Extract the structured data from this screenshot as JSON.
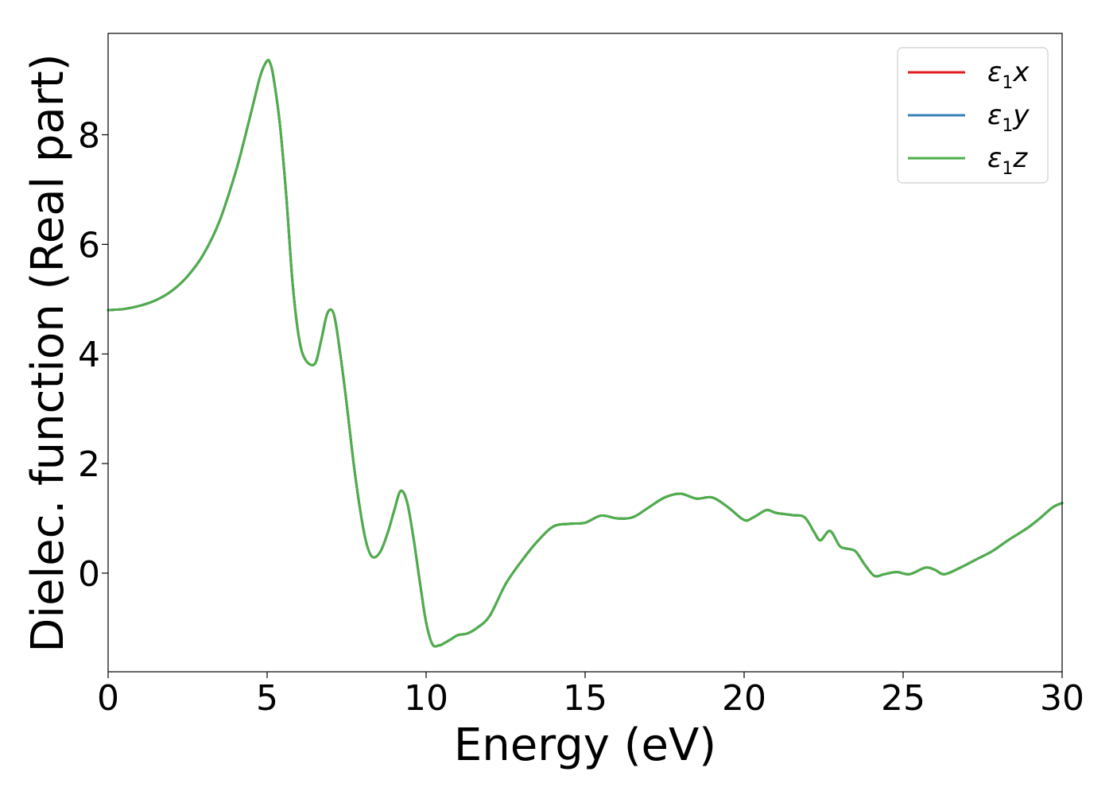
{
  "chart_data": {
    "type": "line",
    "xlabel": "Energy (eV)",
    "ylabel": "Dielec. function (Real part)",
    "xlim": [
      0,
      30
    ],
    "ylim": [
      -1.8,
      9.85
    ],
    "xticks": [
      0,
      5,
      10,
      15,
      20,
      25,
      30
    ],
    "yticks": [
      0,
      2,
      4,
      6,
      8
    ],
    "grid": false,
    "legend_position": "top-right",
    "x": [
      0,
      0.5,
      1,
      1.5,
      2,
      2.5,
      3,
      3.5,
      4,
      4.3,
      4.6,
      4.8,
      5.0,
      5.1,
      5.2,
      5.4,
      5.6,
      5.8,
      6.0,
      6.2,
      6.5,
      6.7,
      6.9,
      7.1,
      7.3,
      7.5,
      7.7,
      7.9,
      8.1,
      8.3,
      8.55,
      8.8,
      9.0,
      9.2,
      9.4,
      9.6,
      9.8,
      10.0,
      10.2,
      10.4,
      10.5,
      10.8,
      11.0,
      11.3,
      11.6,
      12.0,
      12.5,
      13.0,
      13.5,
      14.0,
      14.5,
      15.0,
      15.5,
      16.0,
      16.5,
      17.0,
      17.5,
      18.0,
      18.5,
      19.0,
      19.5,
      20.0,
      20.3,
      20.7,
      21.0,
      21.5,
      21.9,
      22.2,
      22.4,
      22.7,
      23.0,
      23.2,
      23.5,
      23.8,
      24.1,
      24.4,
      24.8,
      25.2,
      25.7,
      26.0,
      26.3,
      26.8,
      27.3,
      27.8,
      28.3,
      28.9,
      29.3,
      29.7,
      30.0
    ],
    "series": [
      {
        "name": "ε1x",
        "color": "#e41a1c",
        "values": [
          4.8,
          4.82,
          4.88,
          4.98,
          5.15,
          5.42,
          5.82,
          6.42,
          7.3,
          7.95,
          8.65,
          9.1,
          9.35,
          9.3,
          9.05,
          8.2,
          6.9,
          5.3,
          4.3,
          3.9,
          3.82,
          4.25,
          4.75,
          4.72,
          4.0,
          3.1,
          2.1,
          1.25,
          0.6,
          0.3,
          0.38,
          0.75,
          1.15,
          1.5,
          1.3,
          0.65,
          -0.15,
          -0.9,
          -1.3,
          -1.32,
          -1.3,
          -1.2,
          -1.13,
          -1.1,
          -1.0,
          -0.78,
          -0.2,
          0.22,
          0.58,
          0.85,
          0.9,
          0.92,
          1.05,
          1.0,
          1.02,
          1.2,
          1.38,
          1.45,
          1.36,
          1.38,
          1.2,
          0.97,
          1.02,
          1.15,
          1.1,
          1.06,
          1.02,
          0.75,
          0.6,
          0.77,
          0.5,
          0.45,
          0.4,
          0.15,
          -0.05,
          -0.02,
          0.02,
          -0.02,
          0.1,
          0.06,
          -0.02,
          0.1,
          0.25,
          0.4,
          0.6,
          0.82,
          1.0,
          1.2,
          1.28
        ]
      },
      {
        "name": "ε1y",
        "color": "#377eb8",
        "values": [
          4.8,
          4.82,
          4.88,
          4.98,
          5.15,
          5.42,
          5.82,
          6.42,
          7.3,
          7.95,
          8.65,
          9.1,
          9.35,
          9.3,
          9.05,
          8.2,
          6.9,
          5.3,
          4.3,
          3.9,
          3.82,
          4.25,
          4.75,
          4.72,
          4.0,
          3.1,
          2.1,
          1.25,
          0.6,
          0.3,
          0.38,
          0.75,
          1.15,
          1.5,
          1.3,
          0.65,
          -0.15,
          -0.9,
          -1.3,
          -1.32,
          -1.3,
          -1.2,
          -1.13,
          -1.1,
          -1.0,
          -0.78,
          -0.2,
          0.22,
          0.58,
          0.85,
          0.9,
          0.92,
          1.05,
          1.0,
          1.02,
          1.2,
          1.38,
          1.45,
          1.36,
          1.38,
          1.2,
          0.97,
          1.02,
          1.15,
          1.1,
          1.06,
          1.02,
          0.75,
          0.6,
          0.77,
          0.5,
          0.45,
          0.4,
          0.15,
          -0.05,
          -0.02,
          0.02,
          -0.02,
          0.1,
          0.06,
          -0.02,
          0.1,
          0.25,
          0.4,
          0.6,
          0.82,
          1.0,
          1.2,
          1.28
        ]
      },
      {
        "name": "ε1z",
        "color": "#4daf4a",
        "values": [
          4.8,
          4.82,
          4.88,
          4.98,
          5.15,
          5.42,
          5.82,
          6.42,
          7.3,
          7.95,
          8.65,
          9.1,
          9.35,
          9.3,
          9.05,
          8.2,
          6.9,
          5.3,
          4.3,
          3.9,
          3.82,
          4.25,
          4.75,
          4.72,
          4.0,
          3.1,
          2.1,
          1.25,
          0.6,
          0.3,
          0.38,
          0.75,
          1.15,
          1.5,
          1.3,
          0.65,
          -0.15,
          -0.9,
          -1.3,
          -1.32,
          -1.3,
          -1.2,
          -1.13,
          -1.1,
          -1.0,
          -0.78,
          -0.2,
          0.22,
          0.58,
          0.85,
          0.9,
          0.92,
          1.05,
          1.0,
          1.02,
          1.2,
          1.38,
          1.45,
          1.36,
          1.38,
          1.2,
          0.97,
          1.02,
          1.15,
          1.1,
          1.06,
          1.02,
          0.75,
          0.6,
          0.77,
          0.5,
          0.45,
          0.4,
          0.15,
          -0.05,
          -0.02,
          0.02,
          -0.02,
          0.1,
          0.06,
          -0.02,
          0.1,
          0.25,
          0.4,
          0.6,
          0.82,
          1.0,
          1.2,
          1.28
        ]
      }
    ],
    "legend": [
      {
        "symbol": "ε",
        "sub": "1",
        "suffix": "x"
      },
      {
        "symbol": "ε",
        "sub": "1",
        "suffix": "y"
      },
      {
        "symbol": "ε",
        "sub": "1",
        "suffix": "z"
      }
    ]
  }
}
